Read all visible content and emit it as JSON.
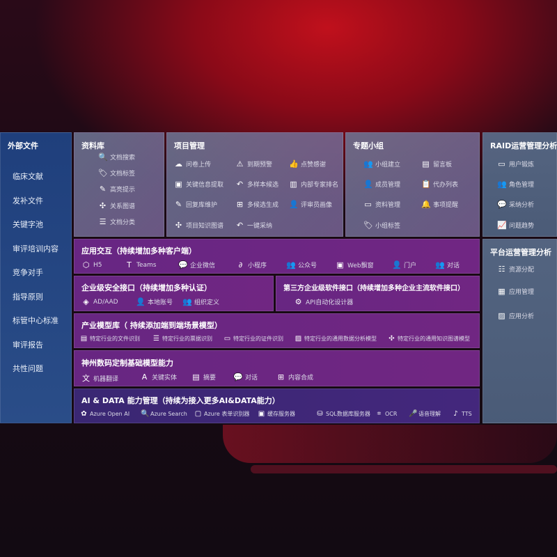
{
  "sidebar": {
    "title": "外部文件",
    "items": [
      "临床文献",
      "发补文件",
      "关键字池",
      "审评培训内容",
      "竞争对手",
      "指导原则",
      "标管中心标准",
      "审评报告",
      "共性问题"
    ]
  },
  "library": {
    "title": "资料库",
    "items": [
      {
        "icon": "doc-search-icon",
        "label": "文档搜索"
      },
      {
        "icon": "tag-icon",
        "label": "文档标签"
      },
      {
        "icon": "pen-icon",
        "label": "高亮提示"
      },
      {
        "icon": "graph-icon",
        "label": "关系图谱"
      },
      {
        "icon": "doc-list-icon",
        "label": "文档分类"
      }
    ]
  },
  "project": {
    "title": "项目管理",
    "items": [
      {
        "icon": "cloud-upload-icon",
        "label": "问卷上传"
      },
      {
        "icon": "alarm-icon",
        "label": "到期预警"
      },
      {
        "icon": "thumbs-up-icon",
        "label": "点赞感谢"
      },
      {
        "icon": "window-icon",
        "label": "关键信息提取"
      },
      {
        "icon": "reply-icon",
        "label": "多样本候选"
      },
      {
        "icon": "ranking-icon",
        "label": "内部专家排名"
      },
      {
        "icon": "pen-icon",
        "label": "回复库维护"
      },
      {
        "icon": "puzzle-icon",
        "label": "多候选生成"
      },
      {
        "icon": "user-icon",
        "label": "评审员画像"
      },
      {
        "icon": "graph-icon",
        "label": "项目知识图谱"
      },
      {
        "icon": "reply-icon",
        "label": "一键采纳"
      }
    ]
  },
  "group": {
    "title": "专题小组",
    "items": [
      {
        "icon": "users-icon",
        "label": "小组建立"
      },
      {
        "icon": "bbs-icon",
        "label": "留言板"
      },
      {
        "icon": "user-add-icon",
        "label": "成员管理"
      },
      {
        "icon": "clipboard-icon",
        "label": "代办列表"
      },
      {
        "icon": "folder-icon",
        "label": "资料管理"
      },
      {
        "icon": "bell-icon",
        "label": "事项提醒"
      },
      {
        "icon": "tag-icon",
        "label": "小组标签"
      }
    ]
  },
  "raid": {
    "title": "RAID运营管理分析",
    "items": [
      {
        "icon": "id-card-icon",
        "label": "用户锻炼"
      },
      {
        "icon": "users-icon",
        "label": "角色管理"
      },
      {
        "icon": "qa-icon",
        "label": "采纳分析"
      },
      {
        "icon": "trend-icon",
        "label": "问题趋势"
      }
    ]
  },
  "platform": {
    "title": "平台运营管理分析",
    "items": [
      {
        "icon": "list-icon",
        "label": "资源分配"
      },
      {
        "icon": "apps-icon",
        "label": "应用管理"
      },
      {
        "icon": "chart-icon",
        "label": "应用分析"
      }
    ]
  },
  "interaction": {
    "title": "应用交互（持续增加多种客户端）",
    "items": [
      {
        "icon": "html5-icon",
        "label": "H5"
      },
      {
        "icon": "teams-icon",
        "label": "Teams"
      },
      {
        "icon": "wechat-work-icon",
        "label": "企业微信"
      },
      {
        "icon": "mini-program-icon",
        "label": "小程序"
      },
      {
        "icon": "users-icon",
        "label": "公众号"
      },
      {
        "icon": "window-icon",
        "label": "Web飘窗"
      },
      {
        "icon": "portal-user-icon",
        "label": "门户"
      },
      {
        "icon": "chat-users-icon",
        "label": "对话"
      }
    ]
  },
  "security": {
    "title": "企业级安全接口（持续增加多种认证）",
    "items": [
      {
        "icon": "ad-icon",
        "label": "AD/AAD"
      },
      {
        "icon": "user-lock-icon",
        "label": "本地账号"
      },
      {
        "icon": "org-icon",
        "label": "组织定义"
      }
    ]
  },
  "thirdparty": {
    "title": "第三方企业级软件接口（持续增加多种企业主流软件接口）",
    "items": [
      {
        "icon": "gear-icon",
        "label": "API自动化设计器"
      }
    ]
  },
  "industry": {
    "title": "产业模型库（ 持续添加端到端场景模型）",
    "items": [
      {
        "icon": "doc-icon",
        "label": "特定行业的文件识别"
      },
      {
        "icon": "receipt-icon",
        "label": "特定行业的票据识别"
      },
      {
        "icon": "id-card-icon",
        "label": "特定行业的证件识别"
      },
      {
        "icon": "chart-icon",
        "label": "特定行业的通用数据分析模型"
      },
      {
        "icon": "graph-icon",
        "label": "特定行业的通用知识图谱模型"
      }
    ]
  },
  "base": {
    "title": "神州数码定制基础模型能力",
    "items": [
      {
        "icon": "translate-icon",
        "label": "机器翻译"
      },
      {
        "icon": "entity-icon",
        "label": "关键实体"
      },
      {
        "icon": "doc-icon",
        "label": "摘要"
      },
      {
        "icon": "chat-icon",
        "label": "对话"
      },
      {
        "icon": "puzzle-icon",
        "label": "内容合成"
      }
    ]
  },
  "aidata": {
    "title": "AI & DATA 能力管理（持续为接入更多AI&DATA能力）",
    "items": [
      {
        "icon": "openai-icon",
        "label": "Azure Open AI"
      },
      {
        "icon": "doc-search-icon",
        "label": "Azure Search"
      },
      {
        "icon": "form-icon",
        "label": "Azure 表单识别器"
      },
      {
        "icon": "cache-icon",
        "label": "缓存服务器"
      },
      {
        "icon": "database-icon",
        "label": "SQL数据库服务器"
      },
      {
        "icon": "ocr-icon",
        "label": "OCR"
      },
      {
        "icon": "mic-icon",
        "label": "语音理解"
      },
      {
        "icon": "tts-icon",
        "label": "TTS"
      }
    ]
  }
}
